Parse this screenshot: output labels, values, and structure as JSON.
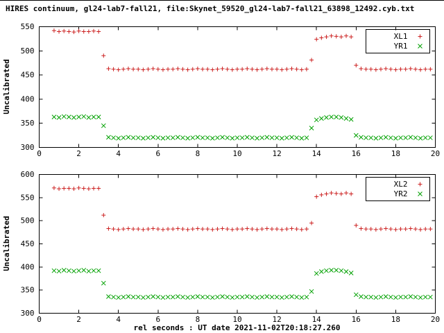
{
  "title": "HIRES continuum, gl24-lab7-fall21, file:Skynet_59520_gl24-lab7-fall21_63898_12492.cyb.txt",
  "xlabel": "rel seconds : UT date 2021-11-02T20:18:27.260",
  "colors": {
    "red": "#cc2020",
    "green": "#00a000",
    "axis": "#000000",
    "background": "#ffffff"
  },
  "chart_data": [
    {
      "type": "scatter",
      "title": "",
      "ylabel": "Uncalibrated",
      "xlabel": "",
      "xlim": [
        0,
        20
      ],
      "ylim": [
        300,
        550
      ],
      "xticks": [
        0,
        2,
        4,
        6,
        8,
        10,
        12,
        14,
        16,
        18,
        20
      ],
      "yticks": [
        300,
        350,
        400,
        450,
        500,
        550
      ],
      "grid": false,
      "legend_position": "top-right",
      "x": [
        0.75,
        1.0,
        1.25,
        1.5,
        1.75,
        2.0,
        2.25,
        2.5,
        2.75,
        3.0,
        3.25,
        3.5,
        3.75,
        4.0,
        4.25,
        4.5,
        4.75,
        5.0,
        5.25,
        5.5,
        5.75,
        6.0,
        6.25,
        6.5,
        6.75,
        7.0,
        7.25,
        7.5,
        7.75,
        8.0,
        8.25,
        8.5,
        8.75,
        9.0,
        9.25,
        9.5,
        9.75,
        10.0,
        10.25,
        10.5,
        10.75,
        11.0,
        11.25,
        11.5,
        11.75,
        12.0,
        12.25,
        12.5,
        12.75,
        13.0,
        13.25,
        13.5,
        13.75,
        14.0,
        14.25,
        14.5,
        14.75,
        15.0,
        15.25,
        15.5,
        15.75,
        16.0,
        16.25,
        16.5,
        16.75,
        17.0,
        17.25,
        17.5,
        17.75,
        18.0,
        18.25,
        18.5,
        18.75,
        19.0,
        19.25,
        19.5,
        19.75
      ],
      "series": [
        {
          "name": "XL1",
          "marker": "plus",
          "color": "#cc2020",
          "values": [
            542,
            540,
            541,
            540,
            539,
            541,
            540,
            540,
            541,
            540,
            490,
            463,
            462,
            461,
            462,
            463,
            462,
            462,
            461,
            462,
            463,
            462,
            461,
            462,
            462,
            463,
            462,
            461,
            462,
            463,
            462,
            462,
            461,
            462,
            463,
            462,
            461,
            462,
            462,
            463,
            462,
            461,
            462,
            463,
            462,
            462,
            461,
            462,
            463,
            462,
            461,
            462,
            481,
            524,
            527,
            529,
            531,
            530,
            529,
            531,
            529,
            470,
            463,
            462,
            462,
            461,
            462,
            463,
            462,
            461,
            462,
            462,
            463,
            462,
            461,
            462,
            462
          ]
        },
        {
          "name": "YR1",
          "marker": "cross",
          "color": "#00a000",
          "values": [
            363,
            362,
            364,
            363,
            362,
            363,
            364,
            362,
            363,
            363,
            345,
            321,
            320,
            319,
            320,
            321,
            320,
            320,
            319,
            320,
            321,
            320,
            319,
            320,
            320,
            321,
            320,
            319,
            320,
            321,
            320,
            320,
            319,
            320,
            321,
            320,
            319,
            320,
            320,
            321,
            320,
            319,
            320,
            321,
            320,
            320,
            319,
            320,
            321,
            320,
            319,
            320,
            340,
            357,
            360,
            362,
            363,
            363,
            362,
            360,
            358,
            325,
            321,
            320,
            320,
            319,
            320,
            321,
            320,
            319,
            320,
            320,
            321,
            320,
            319,
            320,
            320
          ]
        }
      ]
    },
    {
      "type": "scatter",
      "title": "",
      "ylabel": "Uncalibrated",
      "xlabel": "rel seconds : UT date 2021-11-02T20:18:27.260",
      "xlim": [
        0,
        20
      ],
      "ylim": [
        300,
        600
      ],
      "xticks": [
        0,
        2,
        4,
        6,
        8,
        10,
        12,
        14,
        16,
        18,
        20
      ],
      "yticks": [
        300,
        350,
        400,
        450,
        500,
        550,
        600
      ],
      "grid": false,
      "legend_position": "top-right",
      "x": [
        0.75,
        1.0,
        1.25,
        1.5,
        1.75,
        2.0,
        2.25,
        2.5,
        2.75,
        3.0,
        3.25,
        3.5,
        3.75,
        4.0,
        4.25,
        4.5,
        4.75,
        5.0,
        5.25,
        5.5,
        5.75,
        6.0,
        6.25,
        6.5,
        6.75,
        7.0,
        7.25,
        7.5,
        7.75,
        8.0,
        8.25,
        8.5,
        8.75,
        9.0,
        9.25,
        9.5,
        9.75,
        10.0,
        10.25,
        10.5,
        10.75,
        11.0,
        11.25,
        11.5,
        11.75,
        12.0,
        12.25,
        12.5,
        12.75,
        13.0,
        13.25,
        13.5,
        13.75,
        14.0,
        14.25,
        14.5,
        14.75,
        15.0,
        15.25,
        15.5,
        15.75,
        16.0,
        16.25,
        16.5,
        16.75,
        17.0,
        17.25,
        17.5,
        17.75,
        18.0,
        18.25,
        18.5,
        18.75,
        19.0,
        19.25,
        19.5,
        19.75
      ],
      "series": [
        {
          "name": "XL2",
          "marker": "plus",
          "color": "#cc2020",
          "values": [
            571,
            569,
            570,
            570,
            569,
            571,
            570,
            569,
            570,
            570,
            512,
            483,
            482,
            481,
            482,
            483,
            482,
            482,
            481,
            482,
            483,
            482,
            481,
            482,
            482,
            483,
            482,
            481,
            482,
            483,
            482,
            482,
            481,
            482,
            483,
            482,
            481,
            482,
            482,
            483,
            482,
            481,
            482,
            483,
            482,
            482,
            481,
            482,
            483,
            482,
            481,
            482,
            495,
            552,
            556,
            558,
            560,
            559,
            558,
            560,
            558,
            490,
            483,
            482,
            482,
            481,
            482,
            483,
            482,
            481,
            482,
            482,
            483,
            482,
            481,
            482,
            482
          ]
        },
        {
          "name": "YR2",
          "marker": "cross",
          "color": "#00a000",
          "values": [
            392,
            391,
            393,
            392,
            391,
            392,
            393,
            391,
            392,
            392,
            365,
            336,
            335,
            334,
            335,
            336,
            335,
            335,
            334,
            335,
            336,
            335,
            334,
            335,
            335,
            336,
            335,
            334,
            335,
            336,
            335,
            335,
            334,
            335,
            336,
            335,
            334,
            335,
            335,
            336,
            335,
            334,
            335,
            336,
            335,
            335,
            334,
            335,
            336,
            335,
            334,
            335,
            347,
            386,
            390,
            392,
            393,
            393,
            392,
            390,
            387,
            340,
            336,
            335,
            335,
            334,
            335,
            336,
            335,
            334,
            335,
            335,
            336,
            335,
            334,
            335,
            335
          ]
        }
      ]
    }
  ]
}
